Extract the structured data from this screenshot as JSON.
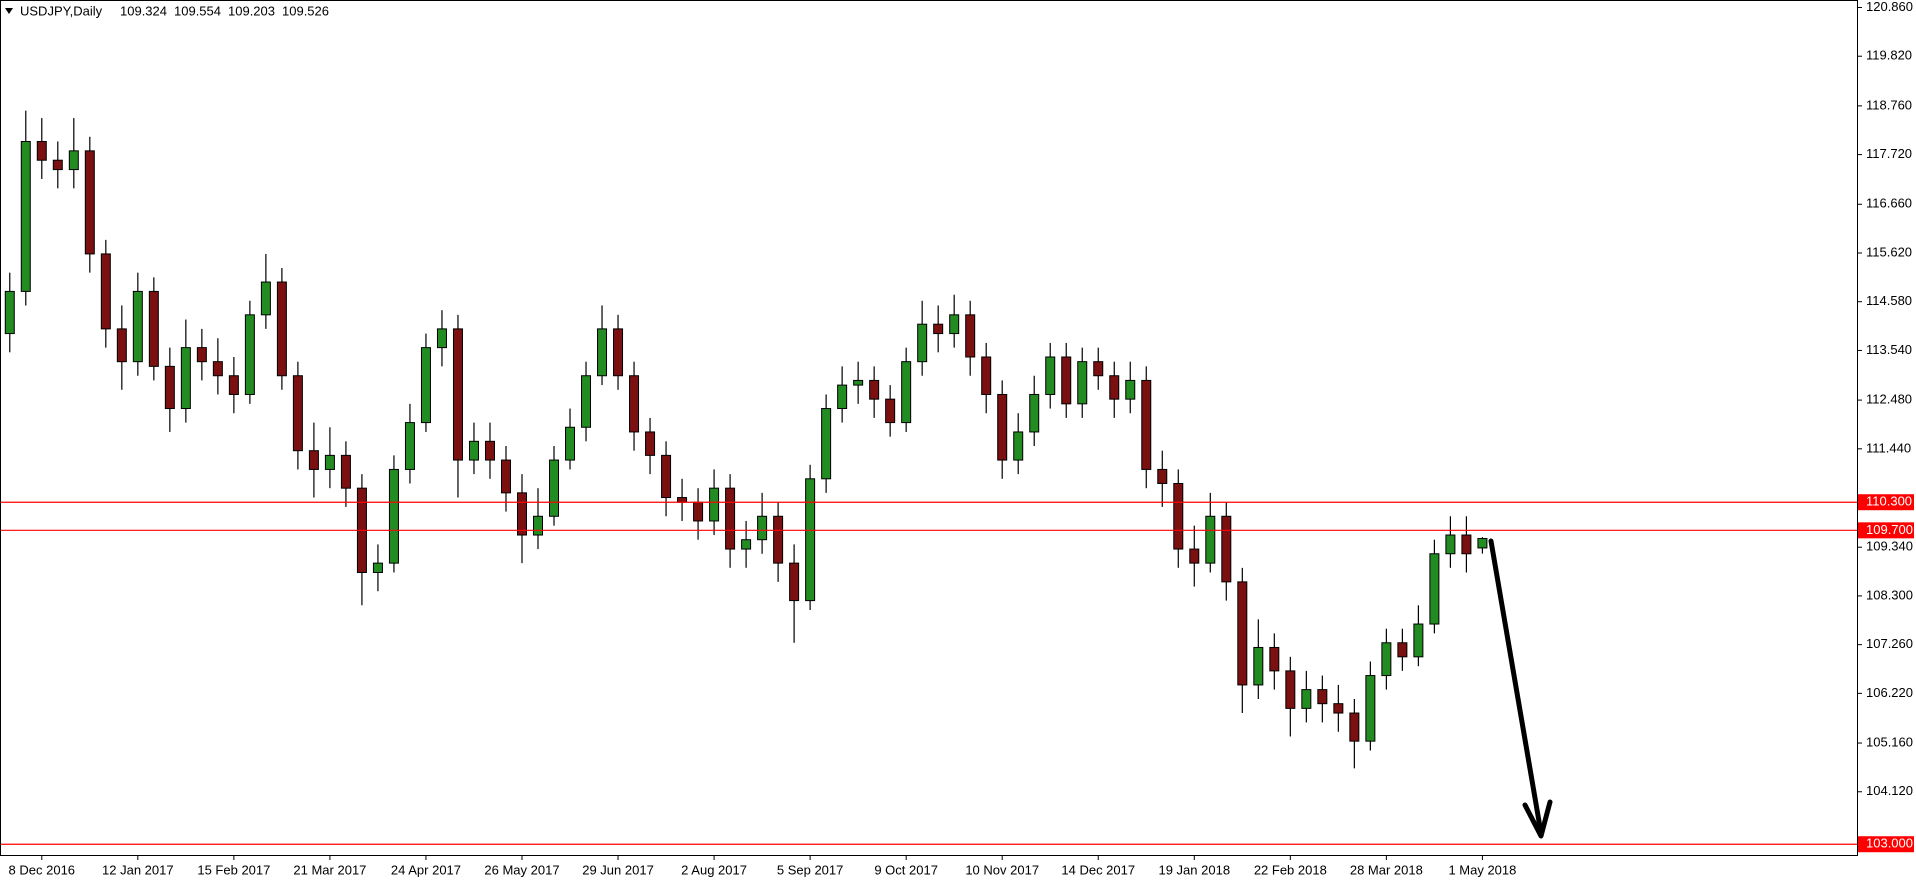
{
  "chart_data": {
    "type": "candlestick",
    "symbol": "USDJPY,Daily",
    "up_color": "#228b22",
    "down_color": "#7a1010",
    "wick_color": "#000000",
    "level_color": "#ff0000",
    "ylim": [
      102.77,
      121.02
    ],
    "yticks": [
      {
        "value": 120.86,
        "label": "120.860"
      },
      {
        "value": 119.82,
        "label": "119.820"
      },
      {
        "value": 118.76,
        "label": "118.760"
      },
      {
        "value": 117.72,
        "label": "117.720"
      },
      {
        "value": 116.66,
        "label": "116.660"
      },
      {
        "value": 115.62,
        "label": "115.620"
      },
      {
        "value": 114.58,
        "label": "114.580"
      },
      {
        "value": 113.54,
        "label": "113.540"
      },
      {
        "value": 112.48,
        "label": "112.480"
      },
      {
        "value": 111.44,
        "label": "111.440"
      },
      {
        "value": 109.34,
        "label": "109.340"
      },
      {
        "value": 108.3,
        "label": "108.300"
      },
      {
        "value": 107.26,
        "label": "107.260"
      },
      {
        "value": 106.22,
        "label": "106.220"
      },
      {
        "value": 105.16,
        "label": "105.160"
      },
      {
        "value": 104.12,
        "label": "104.120"
      }
    ],
    "levels": [
      {
        "value": 110.3,
        "label": "110.300"
      },
      {
        "value": 109.7,
        "label": "109.700"
      },
      {
        "value": 103,
        "label": "103.000"
      }
    ],
    "categories": [
      null,
      null,
      "8 Dec 2016",
      null,
      null,
      null,
      null,
      null,
      "12 Jan 2017",
      null,
      null,
      null,
      null,
      null,
      "15 Feb 2017",
      null,
      null,
      null,
      null,
      null,
      "21 Mar 2017",
      null,
      null,
      null,
      null,
      null,
      "24 Apr 2017",
      null,
      null,
      null,
      null,
      null,
      "26 May 2017",
      null,
      null,
      null,
      null,
      null,
      "29 Jun 2017",
      null,
      null,
      null,
      null,
      null,
      "2 Aug 2017",
      null,
      null,
      null,
      null,
      null,
      "5 Sep 2017",
      null,
      null,
      null,
      null,
      null,
      "9 Oct 2017",
      null,
      null,
      null,
      null,
      null,
      "10 Nov 2017",
      null,
      null,
      null,
      null,
      null,
      "14 Dec 2017",
      null,
      null,
      null,
      null,
      null,
      "19 Jan 2018",
      null,
      null,
      null,
      null,
      null,
      "22 Feb 2018",
      null,
      null,
      null,
      null,
      null,
      "28 Mar 2018",
      null,
      null,
      null,
      null,
      null,
      "1 May 2018"
    ],
    "open": [
      113.9,
      114.8,
      118.0,
      117.6,
      117.4,
      117.8,
      115.6,
      114.0,
      113.3,
      114.8,
      113.2,
      112.3,
      113.6,
      113.3,
      113.0,
      112.6,
      114.3,
      115.0,
      113.0,
      111.4,
      111.0,
      111.3,
      110.6,
      108.8,
      109.0,
      111.0,
      112.0,
      113.6,
      114.0,
      111.2,
      111.6,
      111.2,
      110.5,
      109.6,
      110.0,
      111.2,
      111.9,
      113.0,
      114.0,
      113.0,
      111.8,
      111.3,
      110.4,
      110.3,
      109.9,
      110.6,
      109.3,
      109.5,
      110.0,
      109.0,
      108.2,
      110.8,
      112.3,
      112.8,
      112.9,
      112.5,
      112.0,
      113.3,
      114.1,
      113.9,
      114.3,
      113.4,
      112.6,
      111.2,
      111.8,
      112.6,
      113.4,
      112.4,
      113.3,
      113.0,
      112.5,
      112.9,
      111.0,
      110.7,
      109.3,
      109.0,
      110.0,
      108.6,
      106.4,
      107.2,
      106.7,
      105.9,
      106.3,
      106.0,
      105.8,
      105.2,
      106.6,
      107.3,
      107.0,
      107.7,
      109.2,
      109.6,
      109.324
    ],
    "high": [
      115.2,
      118.66,
      118.5,
      118.0,
      118.5,
      118.1,
      115.9,
      114.5,
      115.2,
      115.1,
      113.6,
      114.2,
      114.0,
      113.8,
      113.4,
      114.6,
      115.6,
      115.3,
      113.3,
      112.0,
      111.9,
      111.6,
      110.9,
      109.4,
      111.3,
      112.4,
      113.9,
      114.4,
      114.3,
      112.0,
      112.0,
      111.5,
      110.9,
      110.6,
      111.5,
      112.3,
      113.3,
      114.5,
      114.3,
      113.3,
      112.1,
      111.6,
      110.8,
      110.6,
      111.0,
      110.9,
      109.9,
      110.5,
      110.3,
      109.4,
      111.1,
      112.6,
      113.2,
      113.3,
      113.2,
      112.8,
      113.6,
      114.6,
      114.5,
      114.73,
      114.6,
      113.7,
      112.9,
      112.2,
      113.0,
      113.7,
      113.7,
      113.6,
      113.6,
      113.3,
      113.3,
      113.2,
      111.4,
      111.0,
      109.8,
      110.5,
      110.3,
      108.9,
      107.8,
      107.5,
      107.0,
      106.7,
      106.6,
      106.4,
      106.1,
      106.9,
      107.6,
      107.6,
      108.1,
      109.5,
      110.0,
      110.0,
      109.554
    ],
    "low": [
      113.5,
      114.5,
      117.2,
      117.0,
      117.0,
      115.2,
      113.6,
      112.7,
      113.0,
      112.9,
      111.8,
      112.0,
      112.9,
      112.6,
      112.2,
      112.4,
      114.0,
      112.7,
      111.0,
      110.4,
      110.6,
      110.2,
      108.1,
      108.4,
      108.8,
      110.7,
      111.8,
      113.2,
      110.4,
      110.9,
      110.8,
      110.1,
      109.0,
      109.3,
      109.8,
      111.0,
      111.6,
      112.8,
      112.7,
      111.4,
      110.9,
      110.0,
      109.9,
      109.5,
      109.6,
      108.9,
      108.9,
      109.2,
      108.6,
      107.3,
      108.0,
      110.5,
      112.0,
      112.4,
      112.1,
      111.7,
      111.8,
      113.0,
      113.5,
      113.6,
      113.0,
      112.2,
      110.8,
      110.9,
      111.5,
      112.3,
      112.1,
      112.1,
      112.7,
      112.1,
      112.2,
      110.6,
      110.2,
      108.9,
      108.5,
      108.8,
      108.2,
      105.8,
      106.1,
      106.3,
      105.3,
      105.6,
      105.6,
      105.4,
      104.62,
      105.0,
      106.3,
      106.7,
      106.8,
      107.5,
      108.9,
      108.8,
      109.203
    ],
    "close": [
      114.8,
      118.0,
      117.6,
      117.4,
      117.8,
      115.6,
      114.0,
      113.3,
      114.8,
      113.2,
      112.3,
      113.6,
      113.3,
      113.0,
      112.6,
      114.3,
      115.0,
      113.0,
      111.4,
      111.0,
      111.3,
      110.6,
      108.8,
      109.0,
      111.0,
      112.0,
      113.6,
      114.0,
      111.2,
      111.6,
      111.2,
      110.5,
      109.6,
      110.0,
      111.2,
      111.9,
      113.0,
      114.0,
      113.0,
      111.8,
      111.3,
      110.4,
      110.3,
      109.9,
      110.6,
      109.3,
      109.5,
      110.0,
      109.0,
      108.2,
      110.8,
      112.3,
      112.8,
      112.9,
      112.5,
      112.0,
      113.3,
      114.1,
      113.9,
      114.3,
      113.4,
      112.6,
      111.2,
      111.8,
      112.6,
      113.4,
      112.4,
      113.3,
      113.0,
      112.5,
      112.9,
      111.0,
      110.7,
      109.3,
      109.0,
      110.0,
      108.6,
      106.4,
      107.2,
      106.7,
      105.9,
      106.3,
      106.0,
      105.8,
      105.2,
      106.6,
      107.3,
      107.0,
      107.7,
      109.2,
      109.6,
      109.2,
      109.526
    ]
  }
}
